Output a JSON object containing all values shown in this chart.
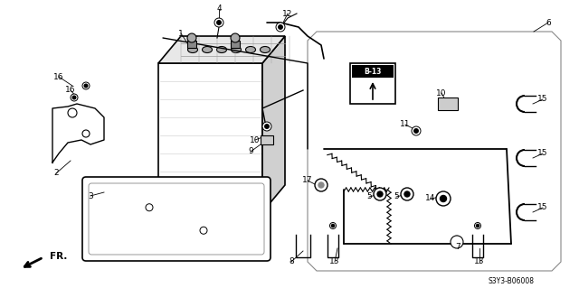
{
  "bg_color": "#ffffff",
  "fig_width": 6.4,
  "fig_height": 3.19,
  "part_number_text": "S3Y3-B06008",
  "ref_label": "B-13",
  "fr_label": "FR.",
  "lc": "black",
  "line_color": "#222222"
}
